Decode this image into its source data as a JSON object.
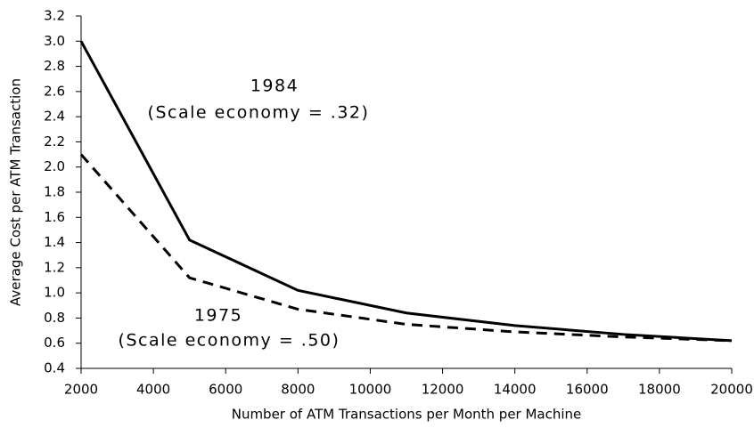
{
  "chart_data": {
    "type": "line",
    "x_label": "Number of ATM Transactions per Month per Machine",
    "y_label": "Average Cost per ATM Transaction",
    "x": [
      2000,
      5000,
      8000,
      11000,
      14000,
      17000,
      20000
    ],
    "series": [
      {
        "name": "1984",
        "annotation": "(Scale economy = .32)",
        "color": "#000000",
        "dashed": false,
        "values": [
          3.0,
          1.42,
          1.02,
          0.84,
          0.74,
          0.67,
          0.62
        ]
      },
      {
        "name": "1975",
        "annotation": "(Scale economy = .50)",
        "color": "#000000",
        "dashed": true,
        "values": [
          2.1,
          1.12,
          0.87,
          0.75,
          0.69,
          0.65,
          0.62
        ]
      }
    ],
    "xlim": [
      2000,
      20000
    ],
    "xticks": [
      2000,
      4000,
      6000,
      8000,
      10000,
      12000,
      14000,
      16000,
      18000,
      20000
    ],
    "ylim": [
      0.4,
      3.2
    ],
    "yticks": [
      0.4,
      0.6,
      0.8,
      {
        "value": 1,
        "label": "1.0"
      },
      1.2,
      1.4,
      1.6,
      1.8,
      {
        "value": 2,
        "label": "2.0"
      },
      2.2,
      2.4,
      2.6,
      2.8,
      {
        "value": 3,
        "label": "3.0"
      },
      3.2
    ],
    "grid": false
  }
}
